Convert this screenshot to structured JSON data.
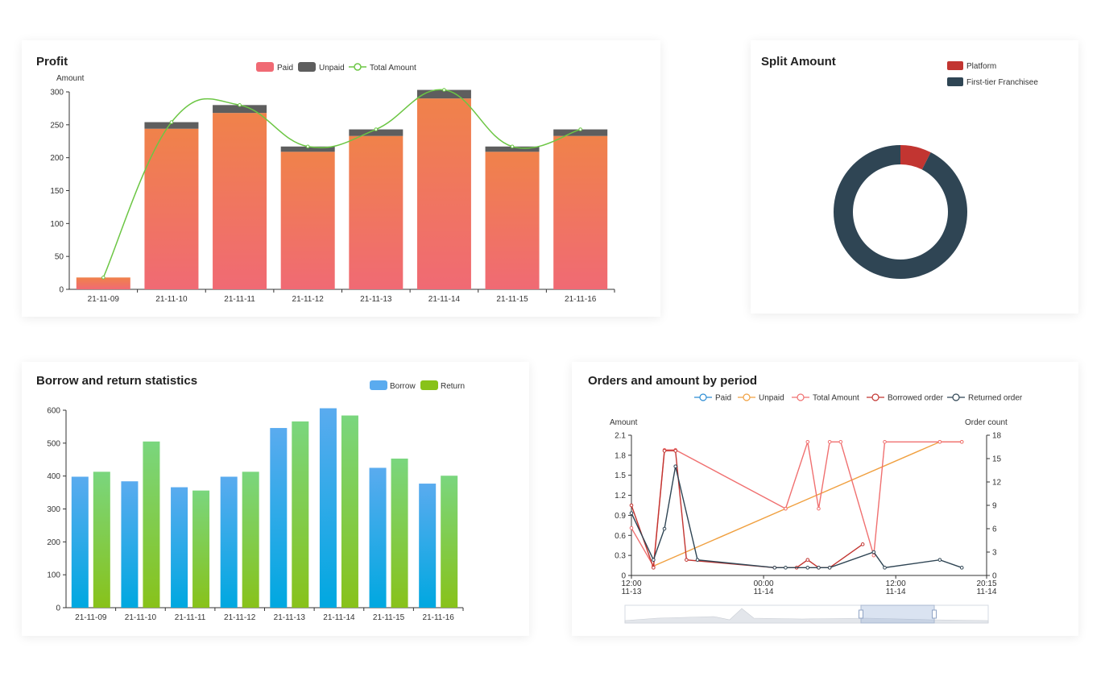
{
  "charts": {
    "profit": {
      "title": "Profit",
      "legend": [
        "Paid",
        "Unpaid",
        "Total Amount"
      ],
      "colors": {
        "paid_top": "#f0824a",
        "paid_bottom": "#f06a74",
        "unpaid": "#5e5e5e",
        "line": "#6cc644"
      },
      "chart_data": {
        "type": "bar",
        "ylabel": "Amount",
        "ylim": [
          0,
          300
        ],
        "yticks": [
          0,
          50,
          100,
          150,
          200,
          250,
          300
        ],
        "categories": [
          "21-11-09",
          "21-11-10",
          "21-11-11",
          "21-11-12",
          "21-11-13",
          "21-11-14",
          "21-11-15",
          "21-11-16"
        ],
        "series": [
          {
            "name": "Paid",
            "values": [
              18,
              244,
              268,
              209,
              233,
              290,
              209,
              233
            ]
          },
          {
            "name": "Unpaid",
            "values": [
              0,
              10,
              12,
              8,
              10,
              13,
              8,
              10
            ]
          },
          {
            "name": "Total Amount",
            "values": [
              18,
              254,
              280,
              217,
              243,
              303,
              217,
              243
            ]
          }
        ]
      }
    },
    "split": {
      "title": "Split Amount",
      "legend": [
        "Platform",
        "First-tier Franchisee"
      ],
      "colors": {
        "platform": "#c23531",
        "franchisee": "#2f4554"
      },
      "chart_data": {
        "type": "pie",
        "categories": [
          "Platform",
          "First-tier Franchisee"
        ],
        "values": [
          7.5,
          92.5
        ]
      }
    },
    "borrow": {
      "title": "Borrow and return statistics",
      "legend": [
        "Borrow",
        "Return"
      ],
      "colors": {
        "borrow_top": "#5aabef",
        "borrow_bottom": "#00a8e0",
        "return_top": "#7ad67e",
        "return_bottom": "#88c21a"
      },
      "chart_data": {
        "type": "bar",
        "ylim": [
          0,
          600
        ],
        "yticks": [
          0,
          100,
          200,
          300,
          400,
          500,
          600
        ],
        "categories": [
          "21-11-09",
          "21-11-10",
          "21-11-11",
          "21-11-12",
          "21-11-13",
          "21-11-14",
          "21-11-15",
          "21-11-16"
        ],
        "series": [
          {
            "name": "Borrow",
            "values": [
              398,
              384,
              366,
              398,
              546,
              606,
              425,
              377
            ]
          },
          {
            "name": "Return",
            "values": [
              413,
              505,
              356,
              413,
              566,
              584,
              453,
              401
            ]
          }
        ]
      }
    },
    "orders": {
      "title": "Orders and amount by period",
      "legend": [
        "Paid",
        "Unpaid",
        "Total Amount",
        "Borrowed order",
        "Returned order"
      ],
      "colors": {
        "paid": "#2b8cd3",
        "unpaid": "#f0a040",
        "total": "#f07070",
        "borrowed": "#c23531",
        "returned": "#2f4554"
      },
      "chart_data": {
        "type": "line",
        "ylabel": "Amount",
        "y2label": "Order count",
        "ylim": [
          0,
          2.1
        ],
        "y2lim": [
          0,
          18
        ],
        "yticks": [
          0,
          0.3,
          0.6,
          0.9,
          1.2,
          1.5,
          1.8,
          2.1
        ],
        "y2ticks": [
          0,
          3,
          6,
          9,
          12,
          15,
          18
        ],
        "xticks": [
          {
            "t": 0,
            "top": "12:00",
            "bottom": "11-13"
          },
          {
            "t": 12,
            "top": "00:00",
            "bottom": "11-14"
          },
          {
            "t": 24,
            "top": "12:00",
            "bottom": "11-14"
          },
          {
            "t": 32.25,
            "top": "20:15",
            "bottom": "11-14"
          }
        ],
        "xlim": [
          0,
          32.25
        ],
        "series": [
          {
            "name": "Unpaid",
            "axis": "left",
            "points": [
              [
                2,
                0.14
              ],
              [
                14,
                1.0
              ],
              [
                28,
                2.0
              ],
              [
                30,
                2.0
              ]
            ]
          },
          {
            "name": "Total Amount",
            "axis": "left",
            "points": [
              [
                0,
                0.71
              ],
              [
                2,
                0.14
              ],
              [
                3,
                1.88
              ],
              [
                4,
                1.88
              ],
              [
                14,
                1.0
              ],
              [
                16,
                2.0
              ],
              [
                17,
                1.0
              ],
              [
                18,
                2.0
              ],
              [
                19,
                2.0
              ],
              [
                22,
                0.3
              ],
              [
                23,
                2.0
              ],
              [
                28,
                2.0
              ],
              [
                30,
                2.0
              ]
            ]
          },
          {
            "name": "Borrowed order",
            "axis": "right",
            "points": [
              [
                0,
                9
              ],
              [
                2,
                1
              ],
              [
                3,
                16
              ],
              [
                4,
                16
              ],
              [
                5,
                2
              ],
              [
                13,
                1
              ],
              [
                15,
                1
              ],
              [
                16,
                2
              ],
              [
                17,
                1
              ],
              [
                18,
                1
              ],
              [
                21,
                4
              ]
            ]
          },
          {
            "name": "Returned order",
            "axis": "right",
            "points": [
              [
                0,
                8
              ],
              [
                2,
                2
              ],
              [
                3,
                6
              ],
              [
                4,
                14
              ],
              [
                6,
                2
              ],
              [
                13,
                1
              ],
              [
                14,
                1
              ],
              [
                16,
                1
              ],
              [
                17,
                1
              ],
              [
                18,
                1
              ],
              [
                22,
                3
              ],
              [
                23,
                1
              ],
              [
                28,
                2
              ],
              [
                30,
                1
              ]
            ]
          }
        ]
      }
    }
  }
}
